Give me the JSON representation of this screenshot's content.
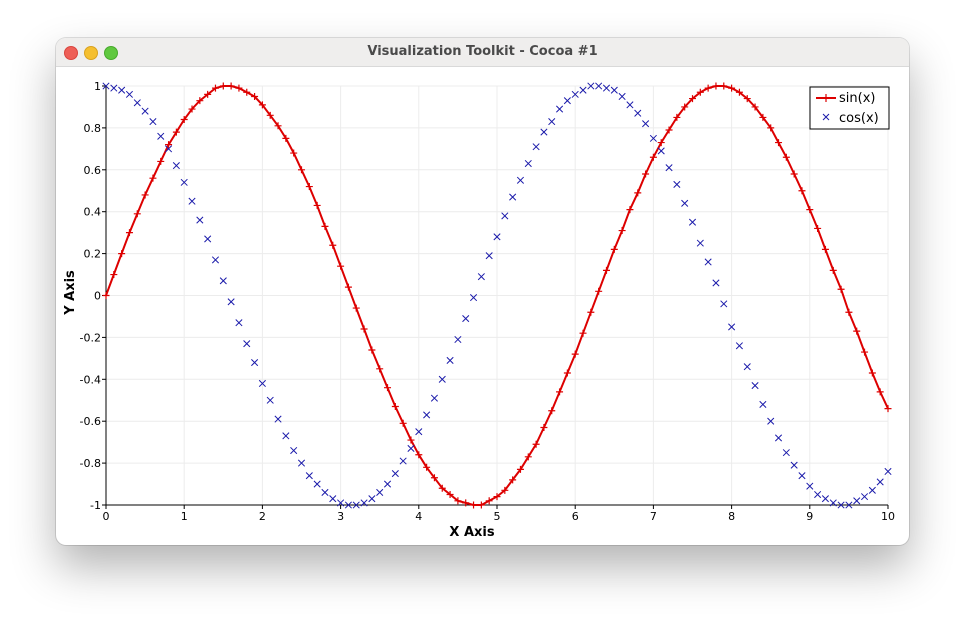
{
  "window": {
    "title": "Visualization Toolkit - Cocoa #1"
  },
  "colors": {
    "sin": "#dd0000",
    "cos": "#1a1aaa",
    "grid": "#ececec"
  },
  "chart_data": {
    "type": "line",
    "xlabel": "X Axis",
    "ylabel": "Y Axis",
    "xlim": [
      0,
      10
    ],
    "ylim": [
      -1,
      1
    ],
    "xticks": [
      0,
      1,
      2,
      3,
      4,
      5,
      6,
      7,
      8,
      9,
      10
    ],
    "yticks": [
      1,
      0.8,
      0.6,
      0.4,
      0.2,
      0,
      -0.2,
      -0.4,
      -0.6,
      -0.8,
      -1
    ],
    "grid": true,
    "legend_position": "top-right",
    "legend": [
      "sin(x)",
      "cos(x)"
    ],
    "series": [
      {
        "name": "sin(x)",
        "style": "line-with-plus-markers",
        "x": [
          0,
          0.1,
          0.2,
          0.3,
          0.4,
          0.5,
          0.6,
          0.7,
          0.8,
          0.9,
          1,
          1.1,
          1.2,
          1.3,
          1.4,
          1.5,
          1.6,
          1.7,
          1.8,
          1.9,
          2,
          2.1,
          2.2,
          2.3,
          2.4,
          2.5,
          2.6,
          2.7,
          2.8,
          2.9,
          3,
          3.1,
          3.2,
          3.3,
          3.4,
          3.5,
          3.6,
          3.7,
          3.8,
          3.9,
          4,
          4.1,
          4.2,
          4.3,
          4.4,
          4.5,
          4.6,
          4.7,
          4.8,
          4.9,
          5,
          5.1,
          5.2,
          5.3,
          5.4,
          5.5,
          5.6,
          5.7,
          5.8,
          5.9,
          6,
          6.1,
          6.2,
          6.3,
          6.4,
          6.5,
          6.6,
          6.7,
          6.8,
          6.9,
          7,
          7.1,
          7.2,
          7.3,
          7.4,
          7.5,
          7.6,
          7.7,
          7.8,
          7.9,
          8,
          8.1,
          8.2,
          8.3,
          8.4,
          8.5,
          8.6,
          8.7,
          8.8,
          8.9,
          9,
          9.1,
          9.2,
          9.3,
          9.4,
          9.5,
          9.6,
          9.7,
          9.8,
          9.9,
          10
        ],
        "values": [
          0,
          0.1,
          0.2,
          0.3,
          0.39,
          0.48,
          0.56,
          0.64,
          0.72,
          0.78,
          0.84,
          0.89,
          0.93,
          0.96,
          0.99,
          1,
          1,
          0.99,
          0.97,
          0.95,
          0.91,
          0.86,
          0.81,
          0.75,
          0.68,
          0.6,
          0.52,
          0.43,
          0.33,
          0.24,
          0.14,
          0.04,
          -0.06,
          -0.16,
          -0.26,
          -0.35,
          -0.44,
          -0.53,
          -0.61,
          -0.69,
          -0.76,
          -0.82,
          -0.87,
          -0.92,
          -0.95,
          -0.98,
          -0.99,
          -1,
          -1,
          -0.98,
          -0.96,
          -0.93,
          -0.88,
          -0.83,
          -0.77,
          -0.71,
          -0.63,
          -0.55,
          -0.46,
          -0.37,
          -0.28,
          -0.18,
          -0.08,
          0.02,
          0.12,
          0.22,
          0.31,
          0.41,
          0.49,
          0.58,
          0.66,
          0.73,
          0.79,
          0.85,
          0.9,
          0.94,
          0.97,
          0.99,
          1,
          1,
          0.99,
          0.97,
          0.94,
          0.9,
          0.85,
          0.8,
          0.73,
          0.66,
          0.58,
          0.5,
          0.41,
          0.32,
          0.22,
          0.12,
          0.03,
          -0.08,
          -0.17,
          -0.27,
          -0.37,
          -0.46,
          -0.54
        ]
      },
      {
        "name": "cos(x)",
        "style": "x-markers",
        "x": [
          0,
          0.1,
          0.2,
          0.3,
          0.4,
          0.5,
          0.6,
          0.7,
          0.8,
          0.9,
          1,
          1.1,
          1.2,
          1.3,
          1.4,
          1.5,
          1.6,
          1.7,
          1.8,
          1.9,
          2,
          2.1,
          2.2,
          2.3,
          2.4,
          2.5,
          2.6,
          2.7,
          2.8,
          2.9,
          3,
          3.1,
          3.2,
          3.3,
          3.4,
          3.5,
          3.6,
          3.7,
          3.8,
          3.9,
          4,
          4.1,
          4.2,
          4.3,
          4.4,
          4.5,
          4.6,
          4.7,
          4.8,
          4.9,
          5,
          5.1,
          5.2,
          5.3,
          5.4,
          5.5,
          5.6,
          5.7,
          5.8,
          5.9,
          6,
          6.1,
          6.2,
          6.3,
          6.4,
          6.5,
          6.6,
          6.7,
          6.8,
          6.9,
          7,
          7.1,
          7.2,
          7.3,
          7.4,
          7.5,
          7.6,
          7.7,
          7.8,
          7.9,
          8,
          8.1,
          8.2,
          8.3,
          8.4,
          8.5,
          8.6,
          8.7,
          8.8,
          8.9,
          9,
          9.1,
          9.2,
          9.3,
          9.4,
          9.5,
          9.6,
          9.7,
          9.8,
          9.9,
          10
        ],
        "values": [
          1,
          0.99,
          0.98,
          0.96,
          0.92,
          0.88,
          0.83,
          0.76,
          0.7,
          0.62,
          0.54,
          0.45,
          0.36,
          0.27,
          0.17,
          0.07,
          -0.03,
          -0.13,
          -0.23,
          -0.32,
          -0.42,
          -0.5,
          -0.59,
          -0.67,
          -0.74,
          -0.8,
          -0.86,
          -0.9,
          -0.94,
          -0.97,
          -0.99,
          -1,
          -1,
          -0.99,
          -0.97,
          -0.94,
          -0.9,
          -0.85,
          -0.79,
          -0.73,
          -0.65,
          -0.57,
          -0.49,
          -0.4,
          -0.31,
          -0.21,
          -0.11,
          -0.01,
          0.09,
          0.19,
          0.28,
          0.38,
          0.47,
          0.55,
          0.63,
          0.71,
          0.78,
          0.83,
          0.89,
          0.93,
          0.96,
          0.98,
          1,
          1,
          0.99,
          0.98,
          0.95,
          0.91,
          0.87,
          0.82,
          0.75,
          0.69,
          0.61,
          0.53,
          0.44,
          0.35,
          0.25,
          0.16,
          0.06,
          -0.04,
          -0.15,
          -0.24,
          -0.34,
          -0.43,
          -0.52,
          -0.6,
          -0.68,
          -0.75,
          -0.81,
          -0.86,
          -0.91,
          -0.95,
          -0.97,
          -0.99,
          -1,
          -1,
          -0.98,
          -0.96,
          -0.93,
          -0.89,
          -0.84
        ]
      }
    ]
  }
}
